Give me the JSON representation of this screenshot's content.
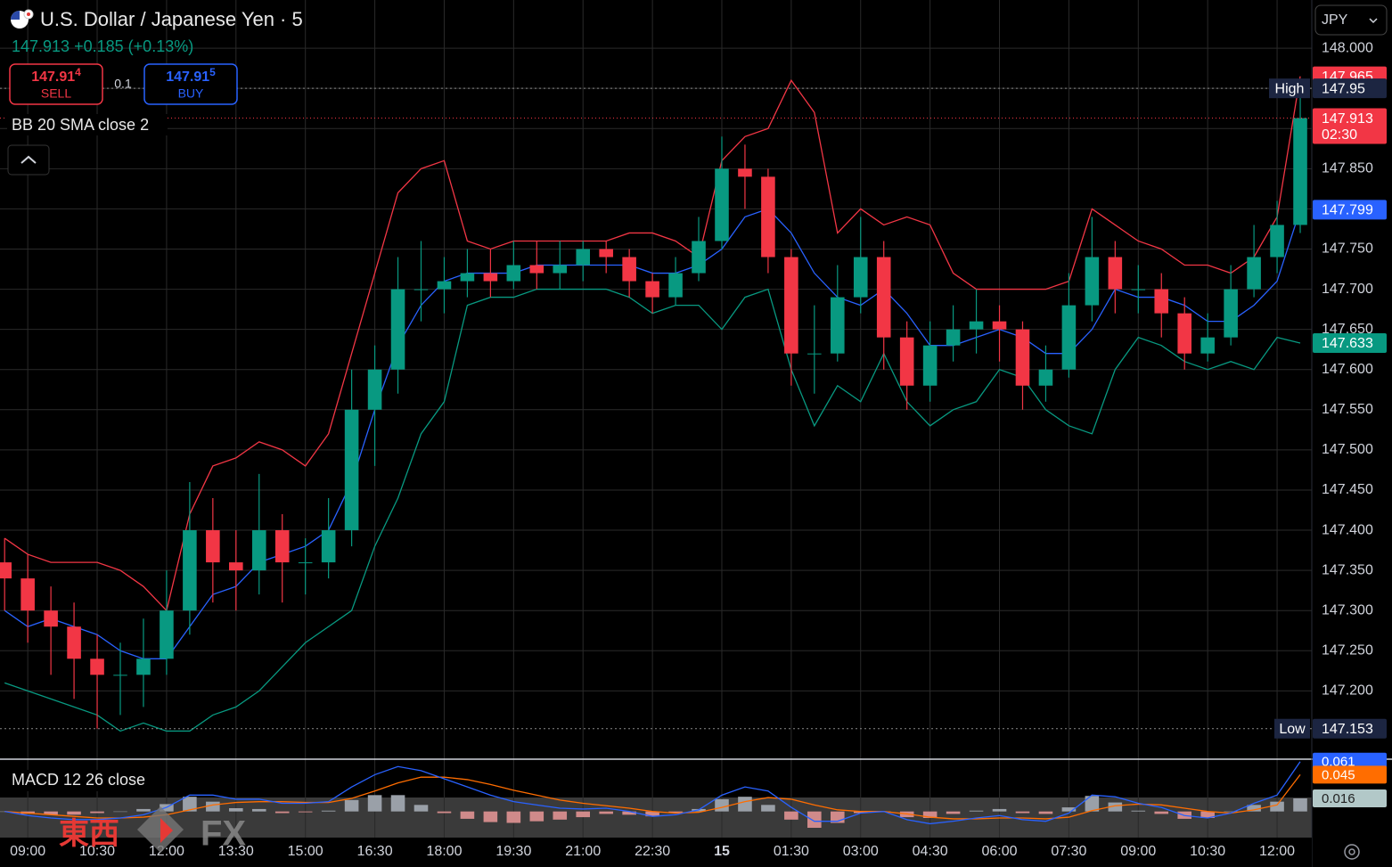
{
  "header": {
    "title": "U.S. Dollar / Japanese Yen · 5",
    "last": "147.913",
    "change": "+0.185",
    "change_pct": "(+0.13%)",
    "sell": {
      "price": "147.91",
      "pip": "4",
      "label": "SELL"
    },
    "lot": "0.1",
    "buy": {
      "price": "147.91",
      "pip": "5",
      "label": "BUY"
    },
    "currency": "JPY",
    "watermark": {
      "cjk": "東西",
      "latin": "FX"
    }
  },
  "chart_data": [
    {
      "type": "candlestick",
      "indicator": "BB 20 SMA close 2",
      "x": [
        -30,
        0,
        30,
        60,
        90,
        120,
        150,
        180,
        210,
        240,
        270,
        300,
        330,
        360,
        390,
        420,
        450,
        480,
        510,
        540,
        570,
        600,
        630,
        660,
        690,
        720,
        750,
        780,
        810,
        840,
        870,
        900,
        930,
        960,
        990,
        1020,
        1050,
        1080,
        1110,
        1140,
        1170,
        1200,
        1230,
        1260,
        1290,
        1320,
        1350,
        1380,
        1410,
        1440,
        1470,
        1500,
        1530,
        1560,
        1590,
        1620,
        1650
      ],
      "open": [
        147.36,
        147.34,
        147.3,
        147.28,
        147.24,
        147.22,
        147.22,
        147.24,
        147.3,
        147.4,
        147.36,
        147.35,
        147.4,
        147.36,
        147.36,
        147.4,
        147.55,
        147.6,
        147.7,
        147.7,
        147.71,
        147.72,
        147.71,
        147.73,
        147.72,
        147.73,
        147.75,
        147.74,
        147.71,
        147.69,
        147.72,
        147.76,
        147.85,
        147.84,
        147.74,
        147.62,
        147.62,
        147.69,
        147.74,
        147.64,
        147.58,
        147.63,
        147.65,
        147.66,
        147.65,
        147.58,
        147.6,
        147.68,
        147.74,
        147.7,
        147.7,
        147.67,
        147.62,
        147.64,
        147.7,
        147.74,
        147.78
      ],
      "high": [
        147.39,
        147.37,
        147.33,
        147.31,
        147.27,
        147.26,
        147.29,
        147.35,
        147.46,
        147.44,
        147.4,
        147.47,
        147.42,
        147.39,
        147.44,
        147.6,
        147.63,
        147.74,
        147.76,
        147.74,
        147.75,
        147.75,
        147.76,
        147.76,
        147.76,
        147.76,
        147.76,
        147.75,
        147.72,
        147.74,
        147.79,
        147.89,
        147.88,
        147.85,
        147.75,
        147.68,
        147.73,
        147.79,
        147.76,
        147.66,
        147.66,
        147.68,
        147.7,
        147.68,
        147.66,
        147.63,
        147.72,
        147.79,
        147.76,
        147.73,
        147.72,
        147.69,
        147.67,
        147.73,
        147.78,
        147.81,
        147.95
      ],
      "low": [
        147.3,
        147.26,
        147.22,
        147.19,
        147.153,
        147.17,
        147.18,
        147.22,
        147.27,
        147.31,
        147.3,
        147.32,
        147.31,
        147.32,
        147.34,
        147.38,
        147.48,
        147.57,
        147.66,
        147.67,
        147.69,
        147.69,
        147.7,
        147.7,
        147.7,
        147.71,
        147.72,
        147.69,
        147.67,
        147.68,
        147.71,
        147.75,
        147.8,
        147.72,
        147.58,
        147.57,
        147.61,
        147.67,
        147.6,
        147.55,
        147.56,
        147.61,
        147.62,
        147.61,
        147.55,
        147.56,
        147.59,
        147.66,
        147.67,
        147.67,
        147.64,
        147.6,
        147.61,
        147.63,
        147.69,
        147.72,
        147.77
      ],
      "close": [
        147.34,
        147.3,
        147.28,
        147.24,
        147.22,
        147.22,
        147.24,
        147.3,
        147.4,
        147.36,
        147.35,
        147.4,
        147.36,
        147.36,
        147.4,
        147.55,
        147.6,
        147.7,
        147.7,
        147.71,
        147.72,
        147.71,
        147.73,
        147.72,
        147.73,
        147.75,
        147.74,
        147.71,
        147.69,
        147.72,
        147.76,
        147.85,
        147.84,
        147.74,
        147.62,
        147.62,
        147.69,
        147.74,
        147.64,
        147.58,
        147.63,
        147.65,
        147.66,
        147.65,
        147.58,
        147.6,
        147.68,
        147.74,
        147.7,
        147.7,
        147.67,
        147.62,
        147.64,
        147.7,
        147.74,
        147.78,
        147.913
      ],
      "up_color": "#089981",
      "down_color": "#f23645",
      "bands": {
        "upper": [
          147.39,
          147.37,
          147.36,
          147.36,
          147.36,
          147.35,
          147.33,
          147.3,
          147.42,
          147.48,
          147.49,
          147.51,
          147.5,
          147.48,
          147.52,
          147.62,
          147.72,
          147.82,
          147.85,
          147.86,
          147.76,
          147.75,
          147.76,
          147.76,
          147.76,
          147.76,
          147.76,
          147.77,
          147.77,
          147.76,
          147.74,
          147.86,
          147.89,
          147.9,
          147.96,
          147.92,
          147.77,
          147.8,
          147.78,
          147.79,
          147.78,
          147.72,
          147.7,
          147.7,
          147.7,
          147.7,
          147.71,
          147.8,
          147.78,
          147.76,
          147.75,
          147.73,
          147.73,
          147.72,
          147.74,
          147.79,
          147.965
        ],
        "middle": [
          147.3,
          147.28,
          147.29,
          147.28,
          147.27,
          147.25,
          147.24,
          147.24,
          147.28,
          147.32,
          147.33,
          147.36,
          147.37,
          147.38,
          147.4,
          147.46,
          147.55,
          147.63,
          147.68,
          147.71,
          147.72,
          147.72,
          147.72,
          147.73,
          147.73,
          147.73,
          147.73,
          147.73,
          147.72,
          147.72,
          147.73,
          147.75,
          147.79,
          147.8,
          147.77,
          147.72,
          147.69,
          147.68,
          147.7,
          147.67,
          147.63,
          147.63,
          147.64,
          147.65,
          147.64,
          147.62,
          147.62,
          147.65,
          147.7,
          147.69,
          147.69,
          147.68,
          147.66,
          147.66,
          147.68,
          147.71,
          147.799
        ],
        "lower": [
          147.21,
          147.2,
          147.19,
          147.18,
          147.17,
          147.15,
          147.16,
          147.15,
          147.15,
          147.17,
          147.18,
          147.2,
          147.23,
          147.26,
          147.28,
          147.3,
          147.38,
          147.44,
          147.52,
          147.56,
          147.68,
          147.69,
          147.69,
          147.7,
          147.7,
          147.7,
          147.7,
          147.69,
          147.67,
          147.68,
          147.68,
          147.65,
          147.69,
          147.7,
          147.6,
          147.53,
          147.58,
          147.56,
          147.62,
          147.56,
          147.53,
          147.55,
          147.56,
          147.6,
          147.59,
          147.55,
          147.53,
          147.52,
          147.6,
          147.64,
          147.63,
          147.61,
          147.6,
          147.61,
          147.6,
          147.64,
          147.633
        ],
        "upper_color": "#f23645",
        "middle_color": "#2962ff",
        "lower_color": "#089981"
      },
      "xlim": [
        -36,
        1665
      ],
      "ylim": [
        147.115,
        148.06
      ],
      "xticks": [
        {
          "value": 0,
          "label": "09:00"
        },
        {
          "value": 90,
          "label": "10:30"
        },
        {
          "value": 180,
          "label": "12:00"
        },
        {
          "value": 270,
          "label": "13:30"
        },
        {
          "value": 360,
          "label": "15:00"
        },
        {
          "value": 450,
          "label": "16:30"
        },
        {
          "value": 540,
          "label": "18:00"
        },
        {
          "value": 630,
          "label": "19:30"
        },
        {
          "value": 720,
          "label": "21:00"
        },
        {
          "value": 810,
          "label": "22:30"
        },
        {
          "value": 900,
          "label": "15"
        },
        {
          "value": 990,
          "label": "01:30"
        },
        {
          "value": 1080,
          "label": "03:00"
        },
        {
          "value": 1170,
          "label": "04:30"
        },
        {
          "value": 1260,
          "label": "06:00"
        },
        {
          "value": 1350,
          "label": "07:30"
        },
        {
          "value": 1440,
          "label": "09:00"
        },
        {
          "value": 1530,
          "label": "10:30"
        },
        {
          "value": 1620,
          "label": "12:00"
        }
      ],
      "yticks": [
        {
          "value": 148,
          "label": "148.000"
        },
        {
          "value": 147.95,
          "label": "147.950"
        },
        {
          "value": 147.9,
          "label": "147.900"
        },
        {
          "value": 147.85,
          "label": "147.850"
        },
        {
          "value": 147.8,
          "label": "147.800"
        },
        {
          "value": 147.75,
          "label": "147.750"
        },
        {
          "value": 147.7,
          "label": "147.700"
        },
        {
          "value": 147.65,
          "label": "147.650"
        },
        {
          "value": 147.6,
          "label": "147.600"
        },
        {
          "value": 147.55,
          "label": "147.550"
        },
        {
          "value": 147.5,
          "label": "147.500"
        },
        {
          "value": 147.45,
          "label": "147.450"
        },
        {
          "value": 147.4,
          "label": "147.400"
        },
        {
          "value": 147.35,
          "label": "147.350"
        },
        {
          "value": 147.3,
          "label": "147.300"
        },
        {
          "value": 147.25,
          "label": "147.250"
        },
        {
          "value": 147.2,
          "label": "147.200"
        }
      ],
      "grid": true,
      "high_label": "High",
      "low_label": "Low",
      "countdown": "02:30"
    },
    {
      "type": "macd",
      "indicator": "MACD 12 26 close",
      "macd": [
        0.0,
        -0.005,
        -0.008,
        -0.01,
        -0.01,
        -0.008,
        -0.004,
        0.005,
        0.02,
        0.02,
        0.015,
        0.015,
        0.01,
        0.01,
        0.012,
        0.03,
        0.045,
        0.055,
        0.05,
        0.04,
        0.03,
        0.02,
        0.012,
        0.008,
        0.004,
        0.003,
        0.004,
        0.0,
        -0.006,
        -0.004,
        0.002,
        0.02,
        0.03,
        0.025,
        0.005,
        -0.012,
        -0.012,
        -0.002,
        0.0,
        -0.01,
        -0.015,
        -0.012,
        -0.008,
        -0.005,
        -0.01,
        -0.012,
        -0.002,
        0.02,
        0.018,
        0.01,
        0.005,
        -0.005,
        -0.008,
        -0.002,
        0.01,
        0.02,
        0.061
      ],
      "signal": [
        0.0,
        -0.002,
        -0.004,
        -0.006,
        -0.008,
        -0.008,
        -0.007,
        -0.004,
        0.002,
        0.008,
        0.011,
        0.012,
        0.012,
        0.011,
        0.011,
        0.016,
        0.025,
        0.035,
        0.042,
        0.042,
        0.039,
        0.033,
        0.026,
        0.02,
        0.014,
        0.01,
        0.007,
        0.004,
        0.0,
        -0.002,
        -0.001,
        0.005,
        0.012,
        0.017,
        0.015,
        0.008,
        0.002,
        0.0,
        0.0,
        -0.003,
        -0.007,
        -0.009,
        -0.009,
        -0.008,
        -0.008,
        -0.009,
        -0.007,
        0.001,
        0.007,
        0.009,
        0.008,
        0.004,
        0.0,
        -0.002,
        0.002,
        0.008,
        0.045
      ],
      "histogram": [
        0,
        -0.003,
        -0.004,
        -0.004,
        -0.002,
        0,
        0.003,
        0.009,
        0.018,
        0.012,
        0.004,
        0.003,
        -0.002,
        -0.001,
        0.001,
        0.014,
        0.02,
        0.02,
        0.008,
        -0.002,
        -0.009,
        -0.013,
        -0.014,
        -0.012,
        -0.01,
        -0.007,
        -0.003,
        -0.004,
        -0.006,
        -0.002,
        0.003,
        0.015,
        0.018,
        0.008,
        -0.01,
        -0.02,
        -0.014,
        -0.002,
        0,
        -0.007,
        -0.008,
        -0.003,
        0.001,
        0.003,
        -0.002,
        -0.003,
        0.005,
        0.019,
        0.011,
        0.001,
        -0.003,
        -0.009,
        -0.008,
        0,
        0.008,
        0.012,
        0.016
      ],
      "macd_color": "#2962ff",
      "signal_color": "#ff6d00",
      "hist_up_color": "#9aa0a8",
      "hist_down_color": "#d08a8a",
      "ylim": [
        -0.032,
        0.064
      ]
    }
  ]
}
